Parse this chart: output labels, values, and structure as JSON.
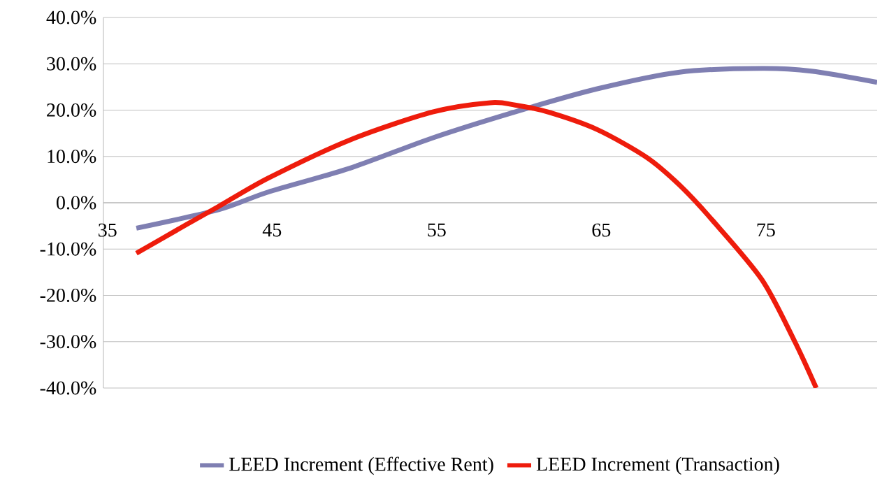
{
  "chart_data": {
    "type": "line",
    "xlim": [
      35,
      82
    ],
    "xticks": [
      35,
      45,
      55,
      65,
      75
    ],
    "ylim": [
      -40,
      40
    ],
    "yticks": [
      {
        "value": -40,
        "label": "-40.0%"
      },
      {
        "value": -30,
        "label": "-30.0%"
      },
      {
        "value": -20,
        "label": "-20.0%"
      },
      {
        "value": -10,
        "label": "-10.0%"
      },
      {
        "value": 0,
        "label": "0.0%"
      },
      {
        "value": 10,
        "label": "10.0%"
      },
      {
        "value": 20,
        "label": "20.0%"
      },
      {
        "value": 30,
        "label": "30.0%"
      },
      {
        "value": 40,
        "label": "40.0%"
      }
    ],
    "grid": "y",
    "legend": "bottom",
    "marker": "none",
    "line_style": "solid",
    "series": [
      {
        "name": "LEED Increment (Effective Rent)",
        "color": "#7f7fb2",
        "x": [
          37,
          42,
          45,
          50,
          55,
          60,
          65,
          70,
          75,
          78,
          82
        ],
        "values": [
          -5.5,
          -1.5,
          2.3,
          7.5,
          14,
          19.6,
          24.6,
          28.2,
          29,
          28.4,
          26
        ]
      },
      {
        "name": "LEED Increment (Transaction)",
        "color": "#ee1c0c",
        "x": [
          37,
          40,
          42,
          45,
          50,
          55,
          58.5,
          60,
          62,
          65,
          68,
          70,
          72,
          75,
          77,
          78.3
        ],
        "values": [
          -10.9,
          -4.8,
          -0.8,
          5.3,
          13.6,
          19.6,
          21.6,
          21.1,
          19.6,
          15.8,
          9.8,
          3.8,
          -3.8,
          -16.6,
          -30,
          -40
        ]
      }
    ]
  }
}
